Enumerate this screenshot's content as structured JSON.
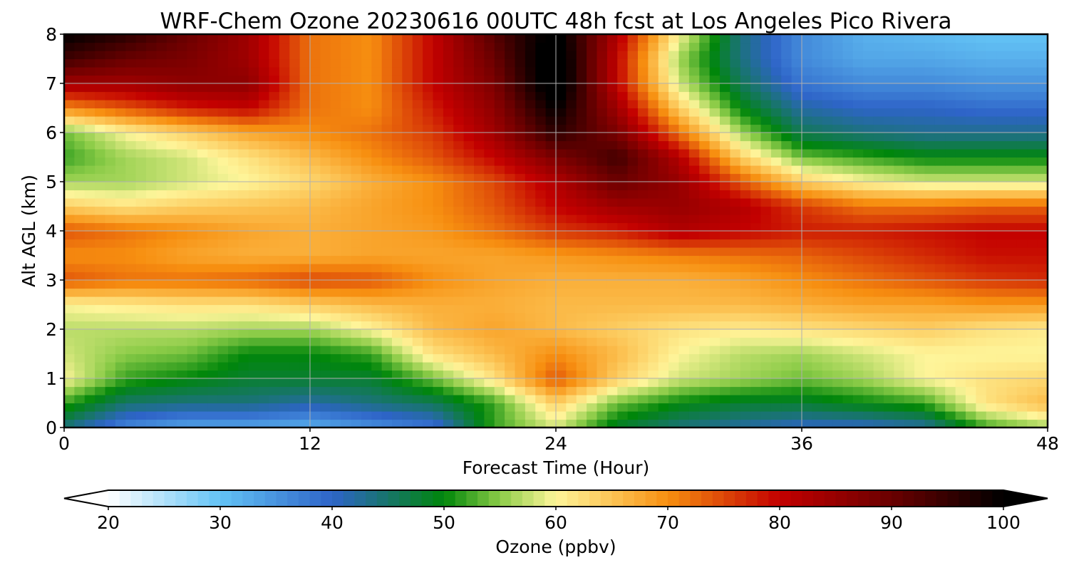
{
  "chart_data": {
    "type": "heatmap",
    "title": "WRF-Chem Ozone  20230616 00UTC 48h fcst at Los Angeles Pico Rivera",
    "xlabel": "Forecast Time (Hour)",
    "ylabel": "Alt AGL (km)",
    "xlim": [
      0,
      48
    ],
    "ylim": [
      0,
      8
    ],
    "x_ticks": [
      0,
      12,
      24,
      36,
      48
    ],
    "y_ticks": [
      0,
      1,
      2,
      3,
      4,
      5,
      6,
      7,
      8
    ],
    "grid": true,
    "x": [
      0,
      3,
      6,
      9,
      12,
      15,
      18,
      21,
      24,
      27,
      30,
      33,
      36,
      39,
      42,
      45,
      48
    ],
    "y": [
      0,
      0.5,
      1,
      1.5,
      2,
      2.5,
      3,
      3.5,
      4,
      4.5,
      5,
      5.5,
      6,
      6.5,
      7,
      7.5,
      8
    ],
    "z": [
      [
        44,
        36,
        33,
        33,
        32,
        35,
        38,
        52,
        58,
        48,
        44,
        42,
        40,
        40,
        42,
        52,
        56
      ],
      [
        52,
        45,
        44,
        44,
        42,
        44,
        46,
        52,
        64,
        54,
        50,
        48,
        48,
        50,
        52,
        62,
        66
      ],
      [
        60,
        52,
        50,
        48,
        48,
        48,
        54,
        62,
        74,
        64,
        58,
        56,
        54,
        56,
        60,
        62,
        63
      ],
      [
        58,
        55,
        54,
        50,
        50,
        52,
        62,
        66,
        70,
        66,
        60,
        57,
        56,
        58,
        60,
        60,
        60
      ],
      [
        57,
        57,
        57,
        56,
        56,
        60,
        66,
        68,
        66,
        64,
        62,
        61,
        62,
        63,
        64,
        62,
        61
      ],
      [
        60,
        61,
        62,
        62,
        64,
        66,
        67,
        67,
        66,
        66,
        66,
        66,
        67,
        68,
        68,
        69,
        69
      ],
      [
        74,
        72,
        72,
        73,
        75,
        74,
        70,
        68,
        67,
        67,
        67,
        68,
        70,
        72,
        74,
        76,
        77
      ],
      [
        70,
        70,
        68,
        67,
        67,
        68,
        68,
        68,
        69,
        70,
        71,
        72,
        73,
        75,
        77,
        79,
        79
      ],
      [
        74,
        72,
        70,
        68,
        67,
        68,
        69,
        72,
        76,
        78,
        82,
        80,
        78,
        78,
        79,
        80,
        80
      ],
      [
        64,
        62,
        64,
        65,
        66,
        68,
        70,
        74,
        80,
        84,
        85,
        82,
        76,
        72,
        72,
        73,
        73
      ],
      [
        56,
        56,
        58,
        60,
        63,
        67,
        70,
        75,
        82,
        90,
        85,
        74,
        64,
        60,
        58,
        58,
        58
      ],
      [
        52,
        56,
        58,
        62,
        66,
        70,
        74,
        80,
        88,
        94,
        82,
        64,
        54,
        52,
        50,
        50,
        50
      ],
      [
        54,
        60,
        64,
        68,
        70,
        72,
        76,
        84,
        96,
        88,
        72,
        56,
        46,
        44,
        43,
        43,
        43
      ],
      [
        70,
        74,
        78,
        80,
        72,
        70,
        78,
        86,
        100,
        84,
        64,
        50,
        42,
        40,
        40,
        39,
        39
      ],
      [
        84,
        84,
        86,
        86,
        72,
        70,
        80,
        88,
        104,
        80,
        58,
        46,
        38,
        36,
        36,
        35,
        35
      ],
      [
        94,
        90,
        88,
        84,
        72,
        70,
        80,
        90,
        104,
        80,
        56,
        44,
        36,
        33,
        33,
        32,
        32
      ],
      [
        100,
        96,
        90,
        84,
        72,
        70,
        80,
        92,
        102,
        82,
        60,
        44,
        36,
        32,
        31,
        30,
        30
      ]
    ],
    "colorbar": {
      "label": "Ozone  (ppbv)",
      "min": 20,
      "max": 100,
      "ticks": [
        20,
        30,
        40,
        50,
        60,
        70,
        80,
        90,
        100
      ],
      "extend": "both",
      "colors": [
        {
          "v": 20,
          "c": "#ffffff"
        },
        {
          "v": 30,
          "c": "#63c3f5"
        },
        {
          "v": 40,
          "c": "#2e64c8"
        },
        {
          "v": 50,
          "c": "#00860a"
        },
        {
          "v": 55,
          "c": "#8ccc48"
        },
        {
          "v": 60,
          "c": "#fef59a"
        },
        {
          "v": 65,
          "c": "#fcc455"
        },
        {
          "v": 70,
          "c": "#f78f10"
        },
        {
          "v": 80,
          "c": "#c30000"
        },
        {
          "v": 90,
          "c": "#6a0000"
        },
        {
          "v": 100,
          "c": "#000000"
        }
      ]
    }
  }
}
